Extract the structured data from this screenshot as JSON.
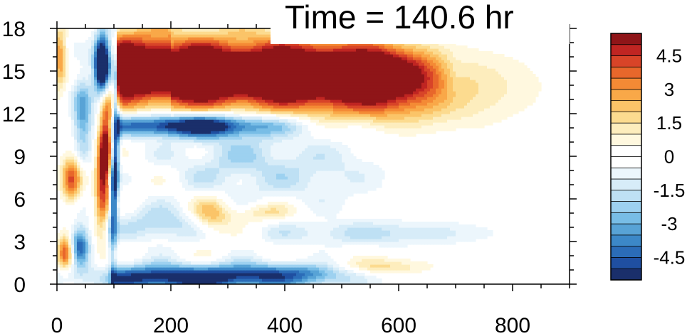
{
  "chart_data": {
    "type": "heatmap",
    "title": "Time = 140.6 hr",
    "xlabel": "",
    "ylabel": "",
    "xlim": [
      0,
      900
    ],
    "ylim": [
      0,
      18
    ],
    "x_ticks": [
      0,
      200,
      400,
      600,
      800
    ],
    "y_ticks": [
      0,
      3,
      6,
      9,
      12,
      15,
      18
    ],
    "colorbar": {
      "levels": [
        -5.5,
        -5,
        -4.5,
        -4,
        -3.5,
        -3,
        -2.5,
        -2,
        -1.5,
        -1,
        -0.5,
        0,
        0.5,
        1,
        1.5,
        2,
        2.5,
        3,
        3.5,
        4,
        4.5,
        5,
        5.5
      ],
      "colors": [
        "#1a2f6b",
        "#1f4fa1",
        "#2b6cb8",
        "#3c88c8",
        "#58a3d6",
        "#78bde6",
        "#9dd1f0",
        "#bee0f4",
        "#d7ecf8",
        "#ecf6fc",
        "#ffffff",
        "#ffffff",
        "#fff8df",
        "#fdedbd",
        "#fcdb8f",
        "#fbc468",
        "#f9a848",
        "#f48a35",
        "#e8672b",
        "#d84428",
        "#c02522",
        "#8f1518"
      ],
      "labels": [
        "4.5",
        "3",
        "1.5",
        "0",
        "-1.5",
        "-3",
        "-4.5"
      ],
      "label_values": [
        4.5,
        3,
        1.5,
        0,
        -1.5,
        -3,
        -4.5
      ]
    },
    "features": [
      {
        "name": "upper-positive-band",
        "x": [
          105,
          620
        ],
        "y": [
          12.5,
          17
        ],
        "value": 5.5
      },
      {
        "name": "upper-negative-band",
        "x": [
          105,
          400
        ],
        "y": [
          10.5,
          12.5
        ],
        "value": -5
      },
      {
        "name": "vertical-negative-column",
        "x": [
          65,
          95
        ],
        "y": [
          13,
          17
        ],
        "value": -5.5
      },
      {
        "name": "vertical-positive-column",
        "x": [
          75,
          100
        ],
        "y": [
          4,
          14
        ],
        "value": 5
      },
      {
        "name": "lower-negative-band",
        "x": [
          100,
          500
        ],
        "y": [
          0,
          1.5
        ],
        "value": -5
      },
      {
        "name": "right-weak-positive",
        "x": [
          480,
          800
        ],
        "y": [
          11,
          17
        ],
        "value": 1.5
      }
    ]
  }
}
